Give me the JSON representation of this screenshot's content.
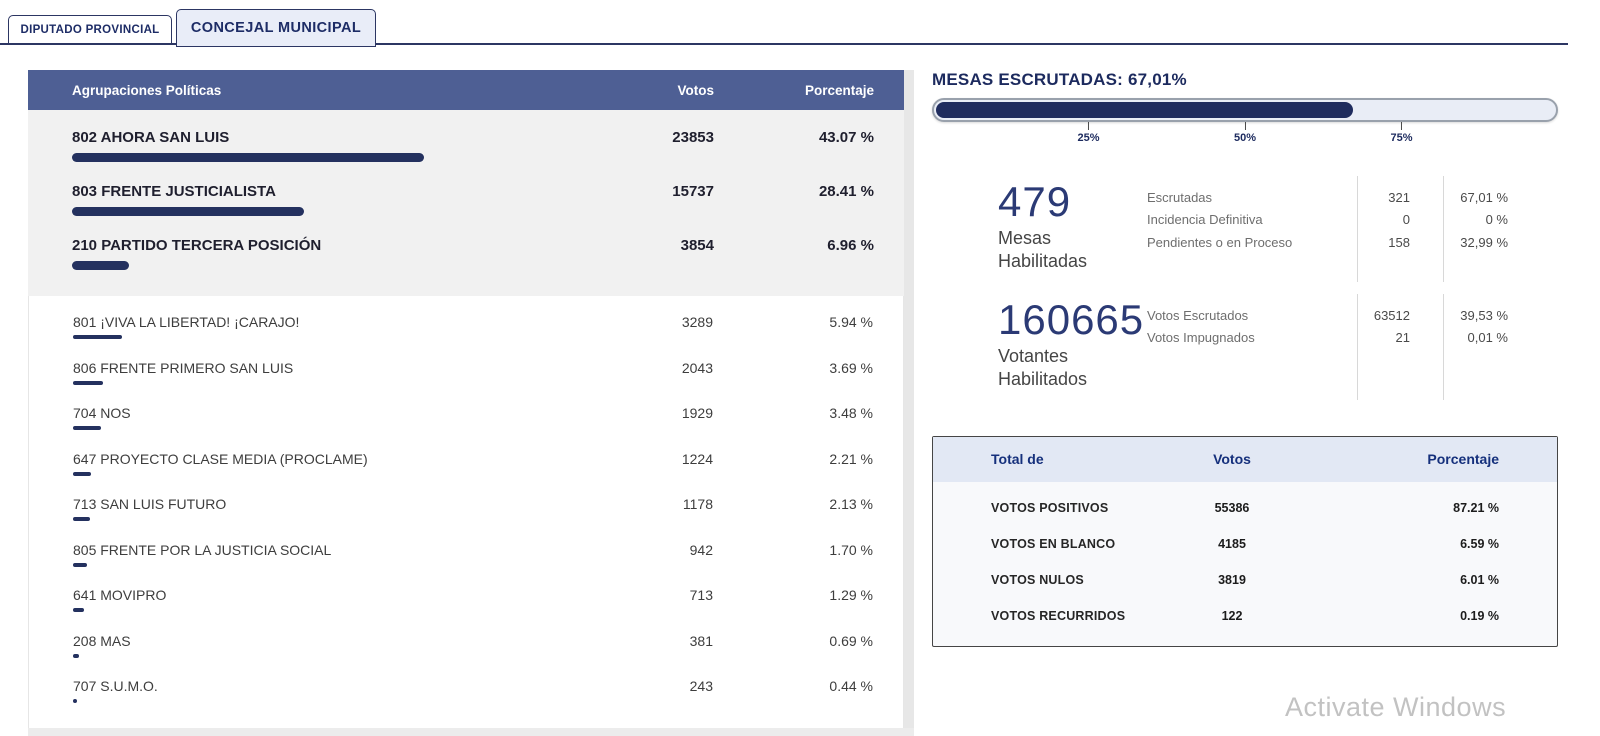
{
  "tabs": {
    "items": [
      {
        "label": "DIPUTADO PROVINCIAL",
        "active": false
      },
      {
        "label": "CONCEJAL MUNICIPAL",
        "active": true
      }
    ]
  },
  "left_table": {
    "header": {
      "party": "Agrupaciones Políticas",
      "votes": "Votos",
      "pct": "Porcentaje"
    },
    "highlighted": [
      {
        "name": "802 AHORA SAN LUIS",
        "votes": "23853",
        "pct": "43.07 %",
        "pct_value": 43.07
      },
      {
        "name": "803 FRENTE JUSTICIALISTA",
        "votes": "15737",
        "pct": "28.41 %",
        "pct_value": 28.41
      },
      {
        "name": "210 PARTIDO TERCERA POSICIÓN",
        "votes": "3854",
        "pct": "6.96 %",
        "pct_value": 6.96
      }
    ],
    "rows": [
      {
        "name": "801 ¡VIVA LA LIBERTAD! ¡CARAJO!",
        "votes": "3289",
        "pct": "5.94 %",
        "pct_value": 5.94
      },
      {
        "name": "806 FRENTE PRIMERO SAN LUIS",
        "votes": "2043",
        "pct": "3.69 %",
        "pct_value": 3.69
      },
      {
        "name": "704 NOS",
        "votes": "1929",
        "pct": "3.48 %",
        "pct_value": 3.48
      },
      {
        "name": "647 PROYECTO CLASE MEDIA (PROCLAME)",
        "votes": "1224",
        "pct": "2.21 %",
        "pct_value": 2.21
      },
      {
        "name": "713 SAN LUIS FUTURO",
        "votes": "1178",
        "pct": "2.13 %",
        "pct_value": 2.13
      },
      {
        "name": "805 FRENTE POR LA JUSTICIA SOCIAL",
        "votes": "942",
        "pct": "1.70 %",
        "pct_value": 1.7
      },
      {
        "name": "641 MOVIPRO",
        "votes": "713",
        "pct": "1.29 %",
        "pct_value": 1.29
      },
      {
        "name": "208 MAS",
        "votes": "381",
        "pct": "0.69 %",
        "pct_value": 0.69
      },
      {
        "name": "707 S.U.M.O.",
        "votes": "243",
        "pct": "0.44 %",
        "pct_value": 0.44
      }
    ]
  },
  "scrutiny": {
    "title": "MESAS ESCRUTADAS: 67,01%",
    "progress_value": 67.01,
    "ticks": [
      {
        "label": "25%"
      },
      {
        "label": "50%"
      },
      {
        "label": "75%"
      }
    ],
    "mesas": {
      "number": "479",
      "label_line1": "Mesas",
      "label_line2": "Habilitadas",
      "rows": [
        {
          "label": "Escrutadas",
          "value": "321",
          "pct": "67,01 %"
        },
        {
          "label": "Incidencia Definitiva",
          "value": "0",
          "pct": "0 %"
        },
        {
          "label": "Pendientes o en Proceso",
          "value": "158",
          "pct": "32,99 %"
        }
      ]
    },
    "votantes": {
      "number": "160665",
      "label_line1": "Votantes",
      "label_line2": "Habilitados",
      "rows": [
        {
          "label": "Votos Escrutados",
          "value": "63512",
          "pct": "39,53 %"
        },
        {
          "label": "Votos Impugnados",
          "value": "21",
          "pct": "0,01 %"
        }
      ]
    }
  },
  "totals": {
    "header": {
      "label": "Total de",
      "votes": "Votos",
      "pct": "Porcentaje"
    },
    "rows": [
      {
        "label": "VOTOS POSITIVOS",
        "votes": "55386",
        "pct": "87.21 %"
      },
      {
        "label": "VOTOS EN BLANCO",
        "votes": "4185",
        "pct": "6.59 %"
      },
      {
        "label": "VOTOS NULOS",
        "votes": "3819",
        "pct": "6.01 %"
      },
      {
        "label": "VOTOS RECURRIDOS",
        "votes": "122",
        "pct": "0.19 %"
      }
    ]
  },
  "colors": {
    "navy": "#24315f",
    "header_blue": "#4e5f94",
    "tab_active_bg": "#e9edf8",
    "highlight_bg": "#f1f1f1",
    "table_header_bg": "#e2e8f4"
  },
  "watermark": "Activate Windows"
}
